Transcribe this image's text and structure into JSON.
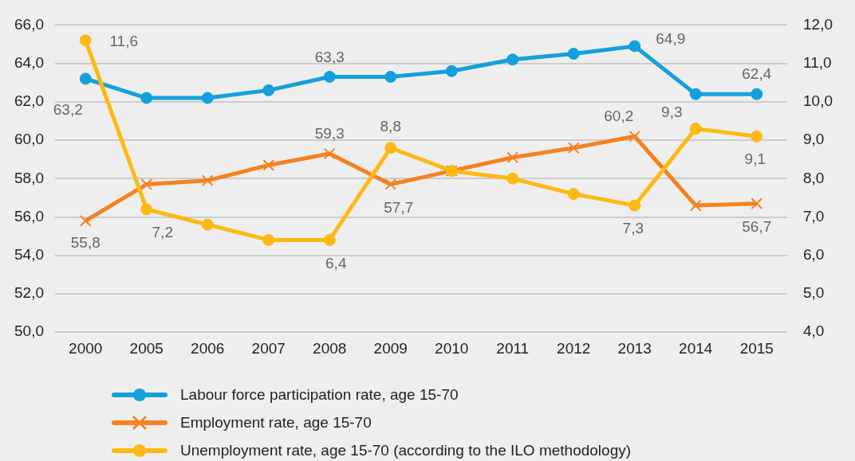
{
  "chart_data": {
    "type": "line",
    "categories": [
      "2000",
      "2005",
      "2006",
      "2007",
      "2008",
      "2009",
      "2010",
      "2011",
      "2012",
      "2013",
      "2014",
      "2015"
    ],
    "series": [
      {
        "name": "Labour force participation rate, age 15-70",
        "color": "#13a0dc",
        "marker": "circle",
        "values": [
          63.2,
          62.2,
          62.2,
          62.6,
          63.3,
          63.3,
          63.6,
          64.2,
          64.5,
          64.9,
          62.4,
          62.4
        ],
        "value_labels": [
          "63,2",
          null,
          null,
          null,
          "63,3",
          null,
          null,
          null,
          null,
          "64,9",
          null,
          "62,4"
        ]
      },
      {
        "name": "Employment rate, age 15-70",
        "color": "#f58220",
        "marker": "cross",
        "values": [
          55.8,
          57.7,
          57.9,
          58.7,
          59.3,
          57.7,
          58.4,
          59.1,
          59.6,
          60.2,
          56.6,
          56.7
        ],
        "value_labels": [
          "55,8",
          null,
          null,
          null,
          "59,3",
          "57,7",
          null,
          null,
          null,
          "60,2",
          null,
          "56,7"
        ]
      },
      {
        "name": "Unemployment rate, age 15-70 (according to the ILO methodology)",
        "color": "#fdb913",
        "marker": "circle",
        "axis": "y2",
        "values": [
          11.6,
          7.2,
          6.8,
          6.4,
          6.4,
          8.8,
          8.2,
          8.0,
          7.6,
          7.3,
          9.3,
          9.1
        ],
        "value_labels": [
          "11,6",
          "7,2",
          null,
          null,
          "6,4",
          "8,8",
          null,
          null,
          null,
          "7,3",
          "9,3",
          "9,1"
        ]
      }
    ],
    "ylim": [
      50,
      66
    ],
    "yticks": [
      {
        "value": 50,
        "label": "50,0"
      },
      {
        "value": 52,
        "label": "52,0"
      },
      {
        "value": 54,
        "label": "54,0"
      },
      {
        "value": 56,
        "label": "56,0"
      },
      {
        "value": 58,
        "label": "58,0"
      },
      {
        "value": 60,
        "label": "60,0"
      },
      {
        "value": 62,
        "label": "62,0"
      },
      {
        "value": 64,
        "label": "64,0"
      },
      {
        "value": 66,
        "label": "66,0"
      }
    ],
    "y2lim": [
      4,
      12
    ],
    "y2ticks": [
      {
        "value": 4,
        "label": "4,0"
      },
      {
        "value": 5,
        "label": "5,0"
      },
      {
        "value": 6,
        "label": "6,0"
      },
      {
        "value": 7,
        "label": "7,0"
      },
      {
        "value": 8,
        "label": "8,0"
      },
      {
        "value": 9,
        "label": "9,0"
      },
      {
        "value": 10,
        "label": "10,0"
      },
      {
        "value": 11,
        "label": "11,0"
      },
      {
        "value": 12,
        "label": "12,0"
      }
    ],
    "grid": "y",
    "legend": "bottom",
    "line_style": "solid"
  }
}
